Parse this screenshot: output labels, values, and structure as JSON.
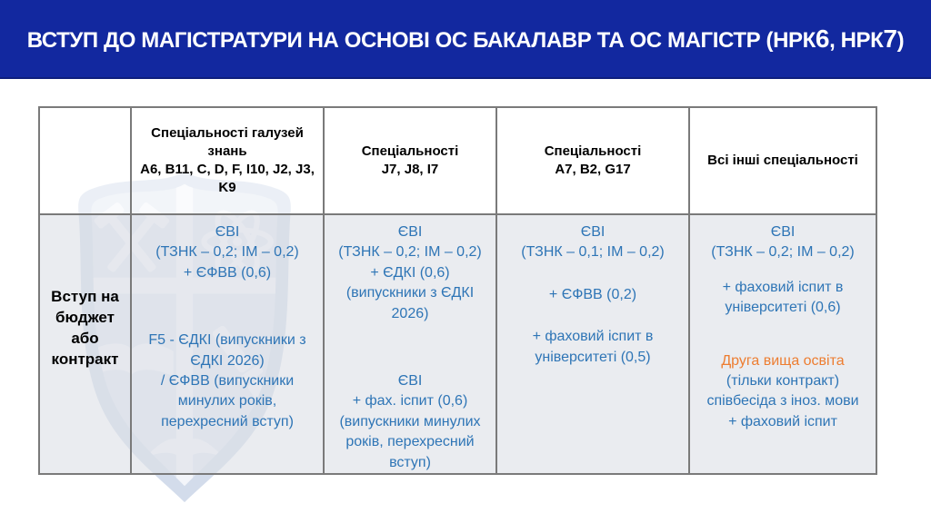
{
  "banner": {
    "title_segments": [
      {
        "text": "ВСТУП ДО МАГІСТРАТУРИ НА ОСНОВІ ОС БАКАЛАВР ТА ОС МАГІСТР (НРК",
        "bold": false
      },
      {
        "text": "6",
        "bold": true
      },
      {
        "text": ", НРК",
        "bold": false
      },
      {
        "text": "7",
        "bold": true
      },
      {
        "text": ")",
        "bold": false
      }
    ]
  },
  "table": {
    "corner_header": "",
    "row_label": "Вступ на бюджет або контракт",
    "column_headers": [
      "Спеціальності галузей знань\nA6, B11, C, D, F, I10, J2, J3, K9",
      "Спеціальності\nJ7, J8, I7",
      "Спеціальності\nA7,  B2,  G17",
      "Всі інші спеціальності"
    ],
    "cells": [
      {
        "blocks": [
          {
            "text": "ЄВІ\n(ТЗНК – 0,2; ІМ – 0,2)\n+ ЄФВВ  (0,6)",
            "color": "blue"
          },
          {
            "text": "F5 - ЄДКІ (випускники з ЄДКІ 2026)\n/ ЄФВВ (випускники минулих років, перехресний вступ)",
            "color": "blue"
          }
        ]
      },
      {
        "blocks": [
          {
            "text": "ЄВІ\n(ТЗНК – 0,2; ІМ – 0,2)\n+ ЄДКІ  (0,6)\n(випускники з ЄДКІ 2026)",
            "color": "blue"
          },
          {
            "text": "ЄВІ\n+ фах. іспит (0,6)\n(випускники минулих років, перехресний вступ)",
            "color": "blue"
          }
        ]
      },
      {
        "blocks": [
          {
            "text": "ЄВІ\n(ТЗНК – 0,1; ІМ – 0,2)",
            "color": "blue"
          },
          {
            "text": "+ ЄФВВ (0,2)",
            "color": "blue"
          },
          {
            "text": "+ фаховий іспит в університеті (0,5)",
            "color": "blue"
          }
        ]
      },
      {
        "blocks": [
          {
            "text": "ЄВІ\n(ТЗНК – 0,2; ІМ – 0,2)",
            "color": "blue"
          },
          {
            "text": "+ фаховий іспит в університеті (0,6)",
            "color": "blue"
          },
          {
            "text": "Друга вища освіта",
            "color": "orange"
          },
          {
            "text": "(тільки контракт)\nспівбесіда з іноз. мови\n+ фаховий іспит",
            "color": "blue"
          }
        ]
      }
    ]
  },
  "watermark": {
    "icon": "university-shield-emblem"
  },
  "colors": {
    "banner_bg": "#12289f",
    "text_blue": "#2e75b6",
    "text_orange": "#ed7d31",
    "border_gray": "#7a7a7a",
    "title_text": "#ffffff"
  }
}
